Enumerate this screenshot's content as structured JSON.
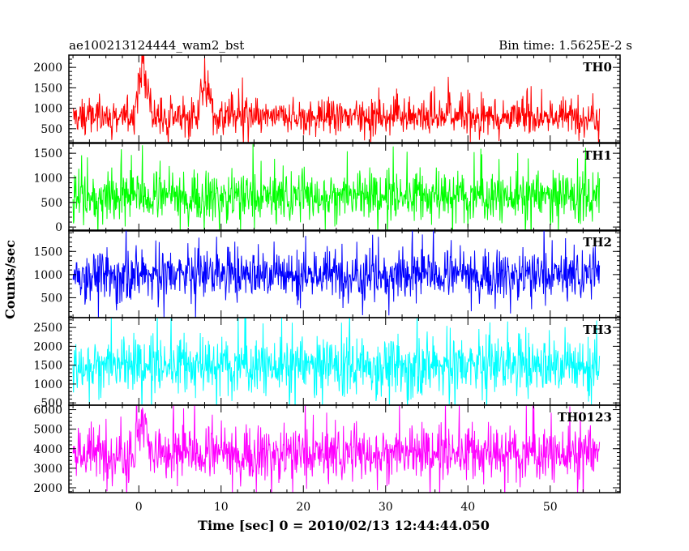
{
  "chart_data": {
    "type": "line",
    "title_left": "ae100213124444_wam2_bst",
    "title_right": "Bin time: 1.5625E-2 s",
    "xlabel": "Time [sec] 0 = 2010/02/13 12:44:44.050",
    "ylabel": "Counts/sec",
    "xlim": [
      -8.5,
      58.5
    ],
    "x_ticks": [
      0,
      10,
      20,
      30,
      40,
      50
    ],
    "x_tick_labels": [
      "0",
      "10",
      "20",
      "30",
      "40",
      "50"
    ],
    "x_range_data": [
      -8,
      56
    ],
    "grid": false,
    "panels": [
      {
        "name": "TH0",
        "color": "#ff0000",
        "ylim": [
          160,
          2300
        ],
        "y_ticks": [
          500,
          1000,
          1500,
          2000
        ],
        "y_tick_labels": [
          "500",
          "1000",
          "1500",
          "2000"
        ],
        "baseline_mean": 790,
        "spread": 350,
        "burst_peaks": [
          {
            "x": 0.5,
            "y": 2450
          },
          {
            "x": 8,
            "y": 2050
          }
        ]
      },
      {
        "name": "TH1",
        "color": "#00ff00",
        "ylim": [
          -80,
          1700
        ],
        "y_ticks": [
          0,
          500,
          1000,
          1500
        ],
        "y_tick_labels": [
          "0",
          "500",
          "1000",
          "1500"
        ],
        "baseline_mean": 620,
        "spread": 420,
        "burst_peaks": []
      },
      {
        "name": "TH2",
        "color": "#0000ff",
        "ylim": [
          70,
          1960
        ],
        "y_ticks": [
          500,
          1000,
          1500
        ],
        "y_tick_labels": [
          "500",
          "1000",
          "1500"
        ],
        "baseline_mean": 1000,
        "spread": 430,
        "burst_peaks": []
      },
      {
        "name": "TH3",
        "color": "#00ffff",
        "ylim": [
          440,
          2760
        ],
        "y_ticks": [
          500,
          1000,
          1500,
          2000,
          2500
        ],
        "y_tick_labels": [
          "500",
          "1000",
          "1500",
          "2000",
          "2500"
        ],
        "baseline_mean": 1480,
        "spread": 620,
        "burst_peaks": []
      },
      {
        "name": "TH0123",
        "color": "#ff00ff",
        "ylim": [
          1750,
          6230
        ],
        "y_ticks": [
          2000,
          3000,
          4000,
          5000,
          6000
        ],
        "y_tick_labels": [
          "2000",
          "3000",
          "4000",
          "5000",
          "6000"
        ],
        "baseline_mean": 3750,
        "spread": 1150,
        "burst_peaks": [
          {
            "x": 0.5,
            "y": 6300
          }
        ]
      }
    ]
  }
}
